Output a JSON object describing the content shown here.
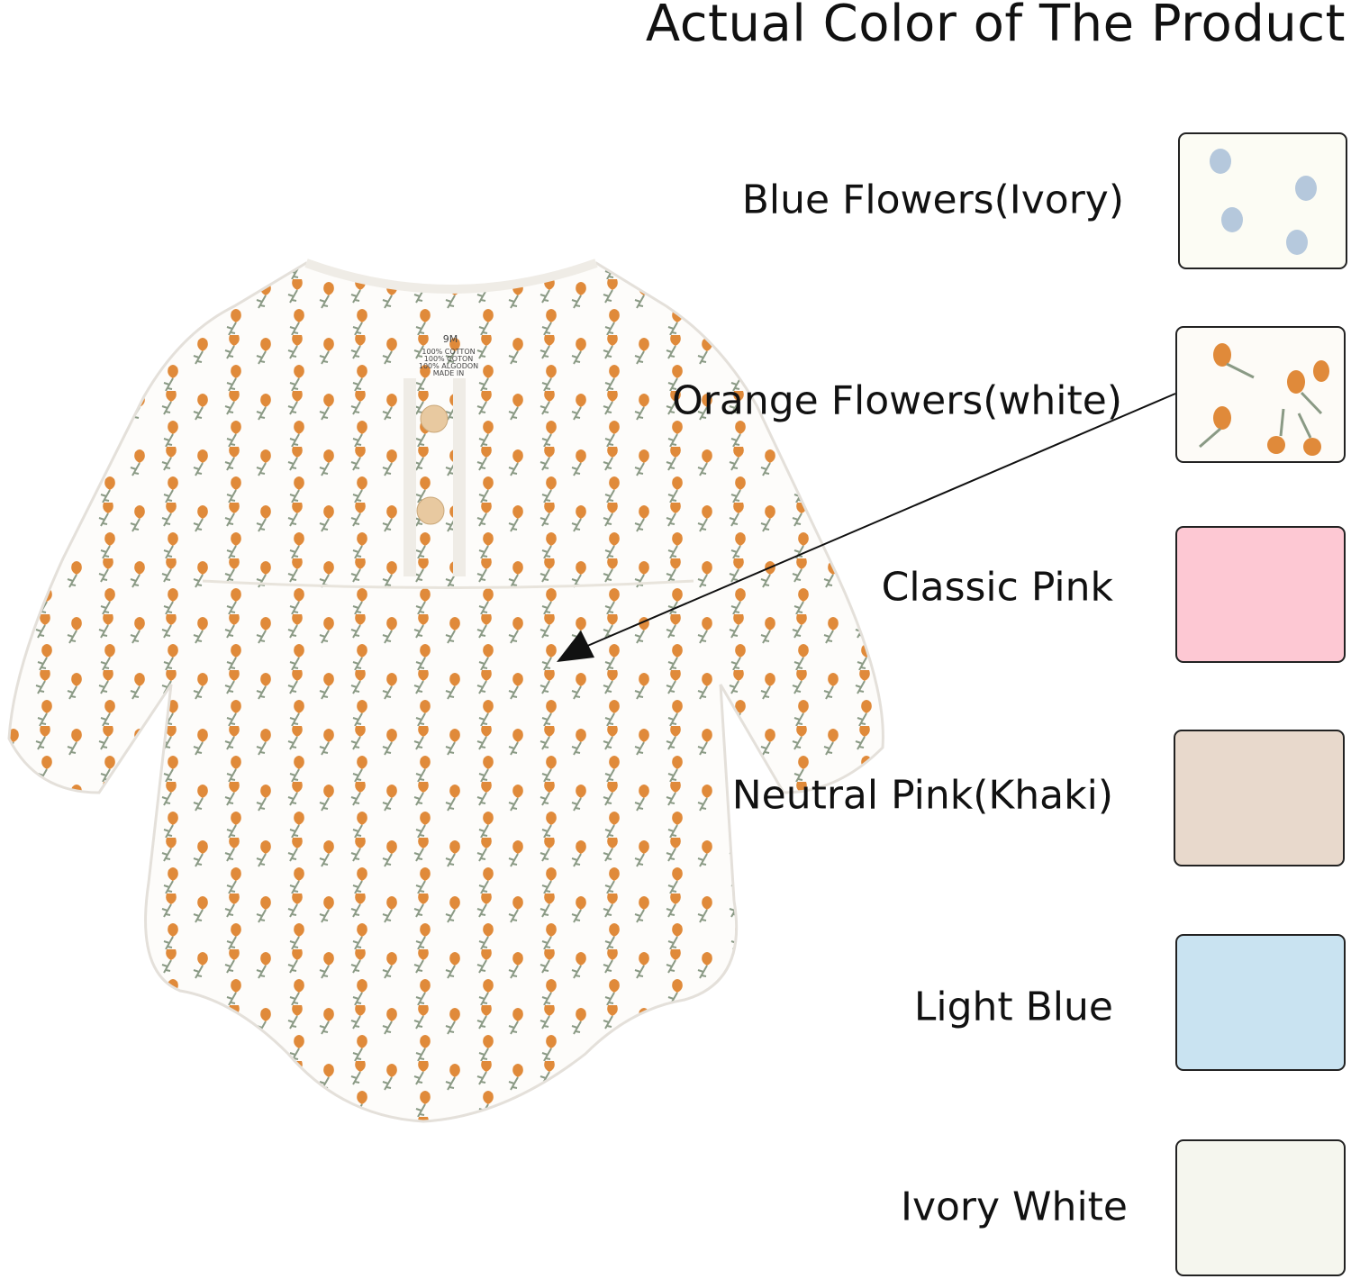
{
  "title": "Actual Color of The Product",
  "garment_tag": {
    "size": "9M",
    "lines": [
      "100% COTTON",
      "100% COTON",
      "100% ALGODON",
      "MADE IN"
    ]
  },
  "colors": [
    {
      "label": "Blue Flowers(Ivory)",
      "swatch": "#fcfcf4",
      "pattern": "blue-flowers",
      "pattern_color": "#9fb6cf"
    },
    {
      "label": "Orange Flowers(white)",
      "swatch": "#fdfbf7",
      "pattern": "orange-flowers",
      "pattern_color": "#e08a3a",
      "arrow_target": "garment"
    },
    {
      "label": "Classic Pink",
      "swatch": "#fdc8d3"
    },
    {
      "label": "Neutral Pink(Khaki)",
      "swatch": "#e8d9cc"
    },
    {
      "label": "Light Blue",
      "swatch": "#c9e3f1"
    },
    {
      "label": "Ivory White",
      "swatch": "#f5f6ee"
    }
  ]
}
